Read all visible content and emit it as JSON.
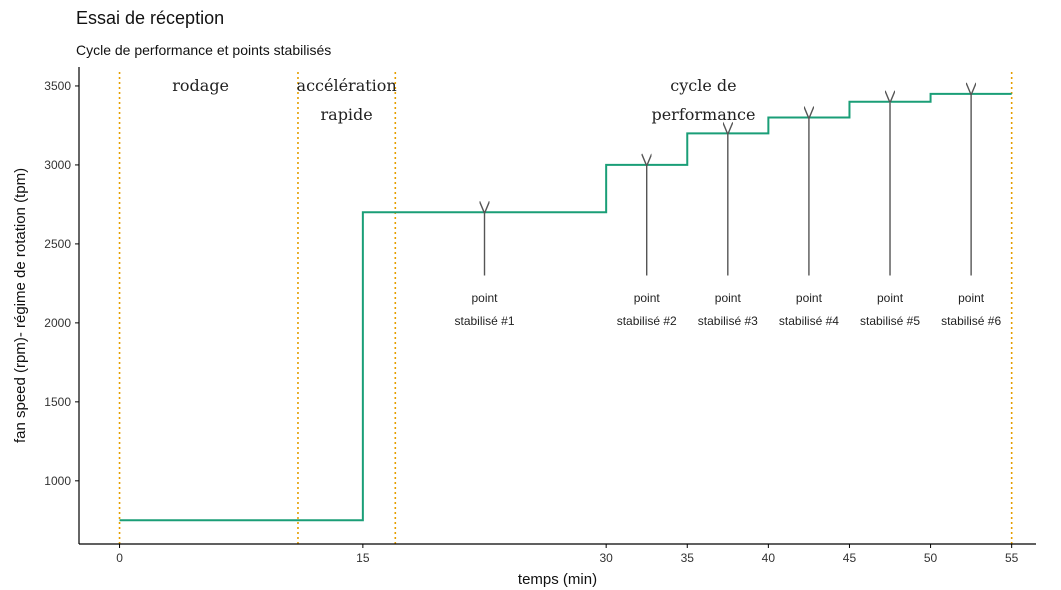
{
  "title": "Essai de réception",
  "subtitle": "Cycle de performance et points stabilisés",
  "colors": {
    "line": "#1a9e77",
    "vline": "#e69f00",
    "arrow": "#555555",
    "axis": "#000000"
  },
  "chart_data": {
    "type": "line",
    "step": true,
    "xlabel": "temps (min)",
    "ylabel": "fan speed (rpm)- régime de rotation (tpm)",
    "xlim": [
      -2.5,
      56.5
    ],
    "ylim": [
      600,
      3620
    ],
    "x_ticks": [
      0,
      15,
      30,
      35,
      40,
      45,
      50,
      55
    ],
    "y_ticks": [
      1000,
      1500,
      2000,
      2500,
      3000,
      3500
    ],
    "grid": false,
    "series": [
      {
        "x": [
          0,
          15,
          15,
          30,
          30,
          35,
          35,
          40,
          40,
          45,
          45,
          50,
          50,
          55
        ],
        "values": [
          750,
          750,
          2700,
          2700,
          3000,
          3000,
          3200,
          3200,
          3300,
          3300,
          3400,
          3400,
          3450,
          3450
        ]
      }
    ],
    "vlines": [
      0,
      11,
      17,
      55
    ],
    "phase_labels": [
      {
        "lines": [
          "rodage"
        ],
        "x": 5,
        "y": 3500
      },
      {
        "lines": [
          "accélération",
          "rapide"
        ],
        "x": 14,
        "y": 3500
      },
      {
        "lines": [
          "cycle de",
          "performance"
        ],
        "x": 36,
        "y": 3500
      }
    ],
    "annotations": [
      {
        "lines": [
          "point",
          "stabilisé #1"
        ],
        "x": 22.5,
        "y_from": 2300,
        "y_to": 2700
      },
      {
        "lines": [
          "point",
          "stabilisé #2"
        ],
        "x": 32.5,
        "y_from": 2300,
        "y_to": 3000
      },
      {
        "lines": [
          "point",
          "stabilisé #3"
        ],
        "x": 37.5,
        "y_from": 2300,
        "y_to": 3200
      },
      {
        "lines": [
          "point",
          "stabilisé #4"
        ],
        "x": 42.5,
        "y_from": 2300,
        "y_to": 3300
      },
      {
        "lines": [
          "point",
          "stabilisé #5"
        ],
        "x": 47.5,
        "y_from": 2300,
        "y_to": 3400
      },
      {
        "lines": [
          "point",
          "stabilisé #6"
        ],
        "x": 52.5,
        "y_from": 2300,
        "y_to": 3450
      }
    ]
  }
}
